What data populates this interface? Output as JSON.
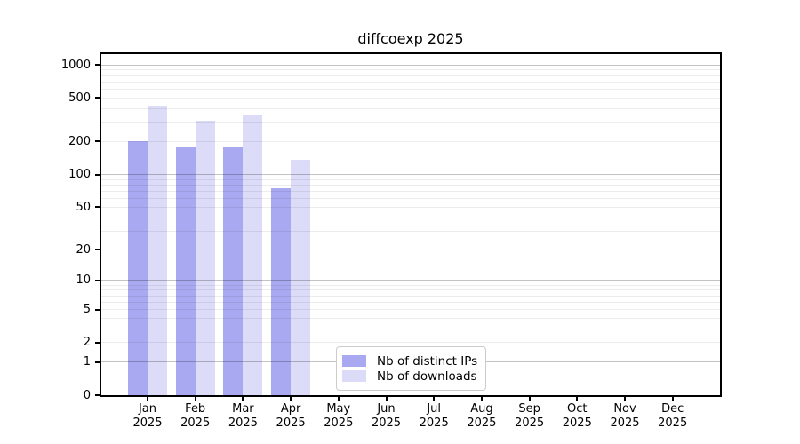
{
  "figure_title": "diffcoexp 2025",
  "chart_data": {
    "type": "bar",
    "title": "diffcoexp 2025",
    "months": [
      "Jan",
      "Feb",
      "Mar",
      "Apr",
      "May",
      "Jun",
      "Jul",
      "Aug",
      "Sep",
      "Oct",
      "Nov",
      "Dec"
    ],
    "year": "2025",
    "series": [
      {
        "name": "Nb of distinct IPs",
        "color": "#a9a9f1",
        "values": [
          200,
          180,
          180,
          75,
          0,
          0,
          0,
          0,
          0,
          0,
          0,
          0
        ]
      },
      {
        "name": "Nb of downloads",
        "color": "#dcdcf8",
        "values": [
          425,
          310,
          355,
          135,
          0,
          0,
          0,
          0,
          0,
          0,
          0,
          0
        ]
      }
    ],
    "yscale": "log1p",
    "y_ticks": [
      0,
      1,
      2,
      5,
      10,
      20,
      50,
      100,
      200,
      500,
      1000
    ],
    "ylim": [
      0,
      1250
    ],
    "grid": "horizontal",
    "legend_position": "inside-bottom-center",
    "xlabel": "",
    "ylabel": ""
  }
}
